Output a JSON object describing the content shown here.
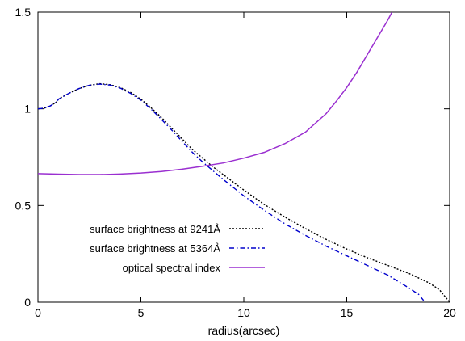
{
  "chart_data": {
    "type": "line",
    "title": "",
    "xlabel": "radius(arcsec)",
    "ylabel": "",
    "xlim": [
      0,
      20
    ],
    "ylim": [
      0,
      1.5
    ],
    "xticks": [
      0,
      5,
      10,
      15,
      20
    ],
    "yticks": [
      0,
      0.5,
      1,
      1.5
    ],
    "xtick_labels": [
      "0",
      "5",
      "10",
      "15",
      "20"
    ],
    "ytick_labels": [
      "0",
      "0.5",
      "1",
      "1.5"
    ],
    "grid": false,
    "legend_position": "bottom-left",
    "series": [
      {
        "name": "surface brightness at 9241Å",
        "color": "#000000",
        "style": "dotted",
        "x": [
          0,
          0.3,
          0.6,
          0.9,
          1.0,
          1.5,
          2.0,
          2.5,
          3.0,
          3.5,
          4.0,
          4.5,
          5.0,
          5.5,
          6.0,
          6.5,
          7.0,
          7.5,
          8.0,
          8.5,
          9.0,
          10.0,
          11.0,
          12.0,
          13.0,
          14.0,
          15.0,
          16.0,
          17.0,
          18.0,
          19.0,
          19.5,
          20.0
        ],
        "y": [
          1.0,
          1.003,
          1.015,
          1.035,
          1.05,
          1.08,
          1.105,
          1.122,
          1.13,
          1.125,
          1.11,
          1.085,
          1.05,
          1.005,
          0.955,
          0.9,
          0.845,
          0.79,
          0.745,
          0.7,
          0.66,
          0.58,
          0.505,
          0.44,
          0.38,
          0.325,
          0.275,
          0.23,
          0.19,
          0.15,
          0.1,
          0.065,
          0.0
        ]
      },
      {
        "name": "surface brightness at 5364Å",
        "color": "#0000cc",
        "style": "dashdot",
        "x": [
          0,
          0.3,
          0.6,
          0.9,
          1.0,
          1.5,
          2.0,
          2.5,
          3.0,
          3.5,
          4.0,
          4.5,
          5.0,
          5.5,
          6.0,
          6.5,
          7.0,
          7.5,
          8.0,
          8.5,
          9.0,
          10.0,
          11.0,
          12.0,
          13.0,
          14.0,
          15.0,
          16.0,
          17.0,
          18.0,
          18.5,
          18.8
        ],
        "y": [
          1.0,
          1.003,
          1.015,
          1.035,
          1.05,
          1.08,
          1.105,
          1.122,
          1.128,
          1.123,
          1.107,
          1.08,
          1.045,
          0.998,
          0.945,
          0.89,
          0.832,
          0.775,
          0.725,
          0.68,
          0.635,
          0.55,
          0.475,
          0.405,
          0.345,
          0.29,
          0.24,
          0.19,
          0.14,
          0.075,
          0.04,
          0.0
        ]
      },
      {
        "name": "optical spectral index",
        "color": "#9a2fd0",
        "style": "solid",
        "x": [
          0,
          1,
          2,
          3,
          4,
          5,
          6,
          7,
          8,
          9,
          10,
          11,
          12,
          13,
          14,
          14.5,
          15,
          15.5,
          16,
          16.5,
          17,
          17.2
        ],
        "y": [
          0.665,
          0.662,
          0.66,
          0.66,
          0.663,
          0.668,
          0.676,
          0.688,
          0.703,
          0.72,
          0.745,
          0.775,
          0.82,
          0.88,
          0.975,
          1.04,
          1.11,
          1.19,
          1.28,
          1.37,
          1.46,
          1.5
        ]
      }
    ]
  }
}
